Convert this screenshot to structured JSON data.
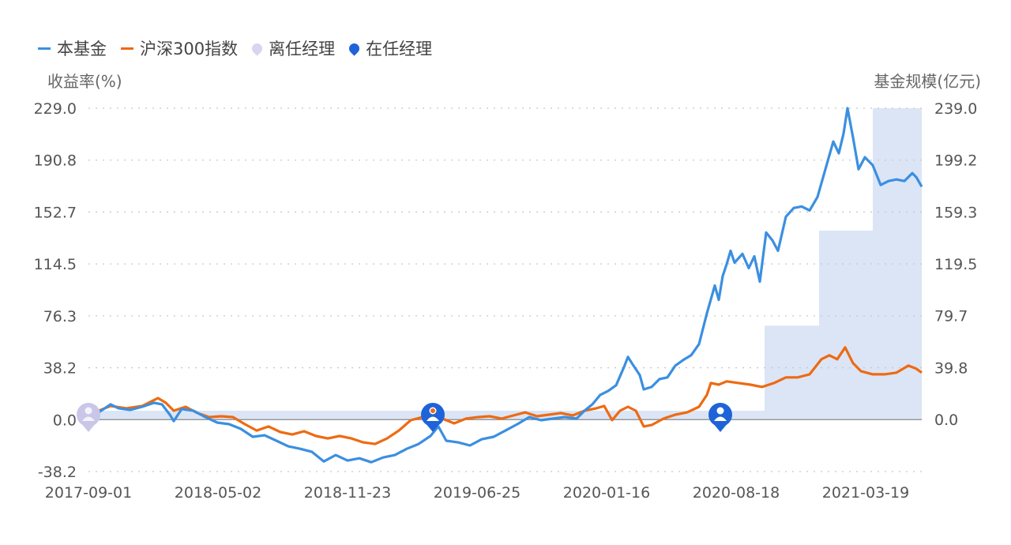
{
  "legend": {
    "fund": "本基金",
    "index": "沪深300指数",
    "former_manager": "离任经理",
    "current_manager": "在任经理"
  },
  "chart_data": {
    "type": "line",
    "ylabel_left": "收益率(%)",
    "ylabel_right": "基金规模(亿元)",
    "ylim_left": [
      -38.2,
      229.0
    ],
    "ylim_right": [
      0,
      239.0
    ],
    "yticks_left": [
      "229.0",
      "190.8",
      "152.7",
      "114.5",
      "76.3",
      "38.2",
      "0.0",
      "-38.2"
    ],
    "yticks_right": [
      "239.0",
      "199.2",
      "159.3",
      "119.5",
      "79.7",
      "39.8",
      "0.0"
    ],
    "x_unit": "trading-day index",
    "xlim": [
      0,
      1055
    ],
    "xticks": [
      {
        "x": 0,
        "label": "2017-09-01"
      },
      {
        "x": 164,
        "label": "2018-05-02"
      },
      {
        "x": 328,
        "label": "2018-11-23"
      },
      {
        "x": 492,
        "label": "2019-06-25"
      },
      {
        "x": 656,
        "label": "2020-01-16"
      },
      {
        "x": 820,
        "label": "2020-08-18"
      },
      {
        "x": 984,
        "label": "2021-03-19"
      }
    ],
    "grid": true,
    "legend_position": "top-left",
    "colors": {
      "fund": "#3b8fe0",
      "index": "#ee6a12",
      "scale": "#dbe5f6",
      "former": "#c9c6e8",
      "current": "#1f63d8"
    },
    "series": [
      {
        "name": "本基金",
        "axis": "left",
        "points": [
          [
            0,
            2.3
          ],
          [
            13,
            5.2
          ],
          [
            28,
            11.1
          ],
          [
            38,
            8.2
          ],
          [
            53,
            7.0
          ],
          [
            68,
            9.3
          ],
          [
            83,
            12.2
          ],
          [
            93,
            11.1
          ],
          [
            103,
            3.5
          ],
          [
            108,
            -1.2
          ],
          [
            118,
            7.6
          ],
          [
            133,
            6.4
          ],
          [
            148,
            1.7
          ],
          [
            163,
            -2.3
          ],
          [
            178,
            -3.5
          ],
          [
            193,
            -7.0
          ],
          [
            208,
            -12.8
          ],
          [
            223,
            -11.7
          ],
          [
            238,
            -15.7
          ],
          [
            253,
            -19.8
          ],
          [
            268,
            -21.6
          ],
          [
            283,
            -23.9
          ],
          [
            298,
            -30.9
          ],
          [
            313,
            -26.2
          ],
          [
            328,
            -30.3
          ],
          [
            343,
            -28.6
          ],
          [
            358,
            -31.5
          ],
          [
            373,
            -28.0
          ],
          [
            388,
            -26.2
          ],
          [
            403,
            -21.6
          ],
          [
            418,
            -18.1
          ],
          [
            433,
            -12.2
          ],
          [
            443,
            -5.2
          ],
          [
            453,
            -15.7
          ],
          [
            468,
            -16.9
          ],
          [
            483,
            -19.2
          ],
          [
            498,
            -14.6
          ],
          [
            513,
            -12.8
          ],
          [
            528,
            -8.2
          ],
          [
            543,
            -3.5
          ],
          [
            558,
            1.7
          ],
          [
            573,
            -0.6
          ],
          [
            588,
            0.6
          ],
          [
            603,
            1.7
          ],
          [
            618,
            0.6
          ],
          [
            628,
            6.4
          ],
          [
            638,
            11.1
          ],
          [
            648,
            18.1
          ],
          [
            658,
            21.0
          ],
          [
            668,
            25.1
          ],
          [
            678,
            38.5
          ],
          [
            683,
            46.0
          ],
          [
            688,
            41.4
          ],
          [
            698,
            32.6
          ],
          [
            703,
            22.1
          ],
          [
            713,
            23.9
          ],
          [
            723,
            29.7
          ],
          [
            733,
            30.9
          ],
          [
            743,
            39.6
          ],
          [
            753,
            43.7
          ],
          [
            763,
            47.2
          ],
          [
            773,
            55.4
          ],
          [
            783,
            78.1
          ],
          [
            793,
            98.5
          ],
          [
            798,
            88.0
          ],
          [
            803,
            105.5
          ],
          [
            808,
            114.2
          ],
          [
            813,
            124.1
          ],
          [
            818,
            115.4
          ],
          [
            828,
            121.8
          ],
          [
            836,
            111.3
          ],
          [
            843,
            120.0
          ],
          [
            850,
            101.4
          ],
          [
            858,
            137.5
          ],
          [
            866,
            131.7
          ],
          [
            873,
            124.1
          ],
          [
            883,
            149.2
          ],
          [
            893,
            155.6
          ],
          [
            903,
            156.7
          ],
          [
            913,
            153.8
          ],
          [
            923,
            163.7
          ],
          [
            933,
            184.1
          ],
          [
            943,
            204.5
          ],
          [
            950,
            195.8
          ],
          [
            956,
            210.4
          ],
          [
            961,
            229.0
          ],
          [
            968,
            207.4
          ],
          [
            975,
            184.1
          ],
          [
            983,
            192.9
          ],
          [
            993,
            187.0
          ],
          [
            1003,
            172.5
          ],
          [
            1013,
            175.4
          ],
          [
            1023,
            176.6
          ],
          [
            1033,
            175.4
          ],
          [
            1043,
            181.2
          ],
          [
            1048,
            178.3
          ],
          [
            1055,
            171.3
          ]
        ]
      },
      {
        "name": "沪深300指数",
        "axis": "left",
        "points": [
          [
            0,
            2.3
          ],
          [
            13,
            6.4
          ],
          [
            28,
            9.9
          ],
          [
            48,
            8.2
          ],
          [
            68,
            9.9
          ],
          [
            88,
            15.7
          ],
          [
            98,
            12.2
          ],
          [
            108,
            6.4
          ],
          [
            123,
            9.3
          ],
          [
            138,
            4.7
          ],
          [
            153,
            1.7
          ],
          [
            168,
            2.3
          ],
          [
            183,
            1.7
          ],
          [
            198,
            -3.5
          ],
          [
            213,
            -8.2
          ],
          [
            228,
            -5.2
          ],
          [
            243,
            -9.3
          ],
          [
            258,
            -11.1
          ],
          [
            273,
            -8.7
          ],
          [
            288,
            -12.2
          ],
          [
            303,
            -14.0
          ],
          [
            318,
            -12.2
          ],
          [
            333,
            -14.0
          ],
          [
            348,
            -16.9
          ],
          [
            363,
            -18.1
          ],
          [
            378,
            -14.0
          ],
          [
            393,
            -8.2
          ],
          [
            408,
            -0.6
          ],
          [
            423,
            1.7
          ],
          [
            436,
            5.2
          ],
          [
            448,
            0.6
          ],
          [
            463,
            -2.9
          ],
          [
            478,
            0.6
          ],
          [
            493,
            1.7
          ],
          [
            508,
            2.3
          ],
          [
            523,
            0.6
          ],
          [
            538,
            2.9
          ],
          [
            553,
            5.2
          ],
          [
            568,
            2.3
          ],
          [
            583,
            3.5
          ],
          [
            598,
            4.7
          ],
          [
            613,
            2.9
          ],
          [
            628,
            6.4
          ],
          [
            643,
            8.2
          ],
          [
            653,
            9.9
          ],
          [
            663,
            -0.6
          ],
          [
            673,
            6.4
          ],
          [
            683,
            9.3
          ],
          [
            693,
            6.4
          ],
          [
            703,
            -5.2
          ],
          [
            713,
            -4.1
          ],
          [
            728,
            0.6
          ],
          [
            743,
            3.5
          ],
          [
            758,
            5.2
          ],
          [
            773,
            9.3
          ],
          [
            783,
            18.1
          ],
          [
            788,
            26.8
          ],
          [
            798,
            25.6
          ],
          [
            808,
            28.0
          ],
          [
            823,
            26.8
          ],
          [
            838,
            25.6
          ],
          [
            853,
            23.9
          ],
          [
            868,
            26.8
          ],
          [
            883,
            30.9
          ],
          [
            898,
            30.9
          ],
          [
            913,
            33.2
          ],
          [
            928,
            44.3
          ],
          [
            938,
            47.2
          ],
          [
            948,
            44.3
          ],
          [
            958,
            53.0
          ],
          [
            968,
            41.4
          ],
          [
            978,
            35.5
          ],
          [
            993,
            33.2
          ],
          [
            1008,
            33.2
          ],
          [
            1023,
            34.4
          ],
          [
            1038,
            39.6
          ],
          [
            1048,
            37.3
          ],
          [
            1055,
            34.4
          ]
        ]
      }
    ],
    "fund_scale": {
      "name": "基金规模",
      "axis": "right",
      "steps": [
        [
          0,
          856,
          6.7
        ],
        [
          856,
          925,
          72.0
        ],
        [
          925,
          993,
          145.0
        ],
        [
          993,
          1055,
          239.0
        ]
      ]
    },
    "markers": [
      {
        "type": "former_manager",
        "x": 0
      },
      {
        "type": "current_manager",
        "x": 436
      },
      {
        "type": "current_manager",
        "x": 800
      }
    ]
  }
}
